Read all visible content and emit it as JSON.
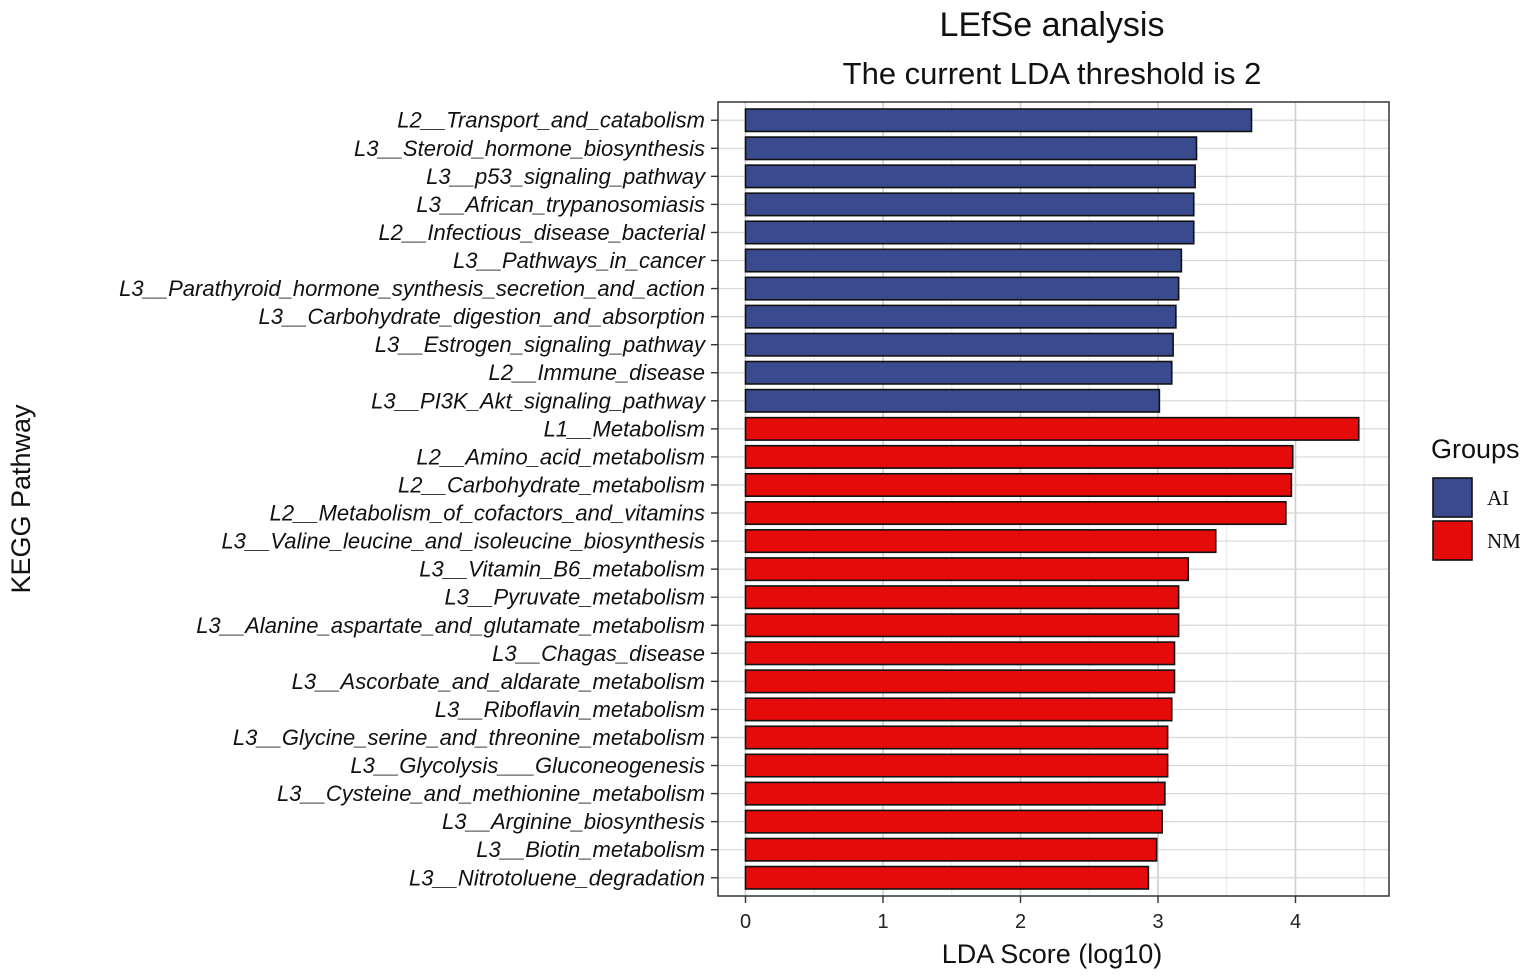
{
  "chart_data": {
    "type": "bar",
    "orientation": "horizontal",
    "title": "LEfSe analysis",
    "subtitle": "The current LDA threshold is 2",
    "xlabel": "LDA Score (log10)",
    "ylabel": "KEGG Pathway",
    "xlim": [
      -0.2,
      4.68
    ],
    "xticks": [
      0,
      1,
      2,
      3,
      4
    ],
    "xtick_labels": [
      "0",
      "1",
      "2",
      "3",
      "4"
    ],
    "grid": true,
    "legend": {
      "title": "Groups",
      "position": "right",
      "entries": [
        {
          "label": "AI",
          "color": "#3a4a8e"
        },
        {
          "label": "NM",
          "color": "#e50b0b"
        }
      ]
    },
    "bars": [
      {
        "label": "L2__Transport_and_catabolism",
        "value": 3.68,
        "group": "AI"
      },
      {
        "label": "L3__Steroid_hormone_biosynthesis",
        "value": 3.28,
        "group": "AI"
      },
      {
        "label": "L3__p53_signaling_pathway",
        "value": 3.27,
        "group": "AI"
      },
      {
        "label": "L3__African_trypanosomiasis",
        "value": 3.26,
        "group": "AI"
      },
      {
        "label": "L2__Infectious_disease_bacterial",
        "value": 3.26,
        "group": "AI"
      },
      {
        "label": "L3__Pathways_in_cancer",
        "value": 3.17,
        "group": "AI"
      },
      {
        "label": "L3__Parathyroid_hormone_synthesis_secretion_and_action",
        "value": 3.15,
        "group": "AI"
      },
      {
        "label": "L3__Carbohydrate_digestion_and_absorption",
        "value": 3.13,
        "group": "AI"
      },
      {
        "label": "L3__Estrogen_signaling_pathway",
        "value": 3.11,
        "group": "AI"
      },
      {
        "label": "L2__Immune_disease",
        "value": 3.1,
        "group": "AI"
      },
      {
        "label": "L3__PI3K_Akt_signaling_pathway",
        "value": 3.01,
        "group": "AI"
      },
      {
        "label": "L1__Metabolism",
        "value": 4.46,
        "group": "NM"
      },
      {
        "label": "L2__Amino_acid_metabolism",
        "value": 3.98,
        "group": "NM"
      },
      {
        "label": "L2__Carbohydrate_metabolism",
        "value": 3.97,
        "group": "NM"
      },
      {
        "label": "L2__Metabolism_of_cofactors_and_vitamins",
        "value": 3.93,
        "group": "NM"
      },
      {
        "label": "L3__Valine_leucine_and_isoleucine_biosynthesis",
        "value": 3.42,
        "group": "NM"
      },
      {
        "label": "L3__Vitamin_B6_metabolism",
        "value": 3.22,
        "group": "NM"
      },
      {
        "label": "L3__Pyruvate_metabolism",
        "value": 3.15,
        "group": "NM"
      },
      {
        "label": "L3__Alanine_aspartate_and_glutamate_metabolism",
        "value": 3.15,
        "group": "NM"
      },
      {
        "label": "L3__Chagas_disease",
        "value": 3.12,
        "group": "NM"
      },
      {
        "label": "L3__Ascorbate_and_aldarate_metabolism",
        "value": 3.12,
        "group": "NM"
      },
      {
        "label": "L3__Riboflavin_metabolism",
        "value": 3.1,
        "group": "NM"
      },
      {
        "label": "L3__Glycine_serine_and_threonine_metabolism",
        "value": 3.07,
        "group": "NM"
      },
      {
        "label": "L3__Glycolysis___Gluconeogenesis",
        "value": 3.07,
        "group": "NM"
      },
      {
        "label": "L3__Cysteine_and_methionine_metabolism",
        "value": 3.05,
        "group": "NM"
      },
      {
        "label": "L3__Arginine_biosynthesis",
        "value": 3.03,
        "group": "NM"
      },
      {
        "label": "L3__Biotin_metabolism",
        "value": 2.99,
        "group": "NM"
      },
      {
        "label": "L3__Nitrotoluene_degradation",
        "value": 2.93,
        "group": "NM"
      }
    ]
  }
}
